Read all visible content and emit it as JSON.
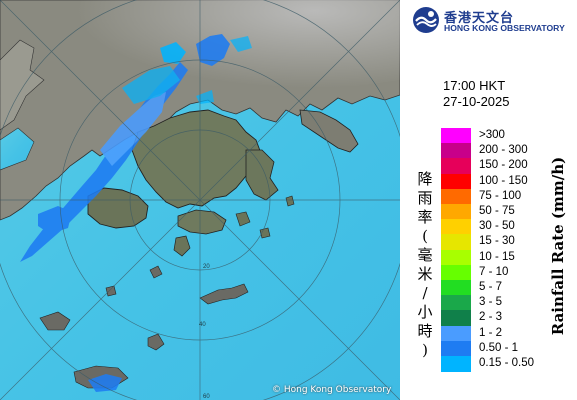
{
  "logo": {
    "name_cn": "香港天文台",
    "name_en": "HONG KONG OBSERVATORY"
  },
  "timestamp": {
    "time": "17:00 HKT",
    "date": "27-10-2025"
  },
  "copyright": "© Hong Kong Observatory",
  "legend": {
    "title_en": "Rainfall Rate (mm/h)",
    "title_cn": [
      "降",
      "雨",
      "率",
      "(",
      "毫",
      "米",
      "/",
      "小",
      "時",
      ")"
    ],
    "items": [
      {
        "label": ">300",
        "color": "#ff00ff"
      },
      {
        "label": "200 - 300",
        "color": "#c8008a"
      },
      {
        "label": "150 - 200",
        "color": "#e6005a"
      },
      {
        "label": "100 - 150",
        "color": "#ff0000"
      },
      {
        "label": "75 - 100",
        "color": "#ff6a00"
      },
      {
        "label": "50 - 75",
        "color": "#ffa800"
      },
      {
        "label": "30 - 50",
        "color": "#ffd000"
      },
      {
        "label": "15 - 30",
        "color": "#e6e600"
      },
      {
        "label": "10 - 15",
        "color": "#a8ff00"
      },
      {
        "label": "7 - 10",
        "color": "#66ff00"
      },
      {
        "label": "5 - 7",
        "color": "#22dd22"
      },
      {
        "label": "3 - 5",
        "color": "#1aa84a"
      },
      {
        "label": "2 - 3",
        "color": "#10804a"
      },
      {
        "label": "1 - 2",
        "color": "#4a9cff"
      },
      {
        "label": "0.50 - 1",
        "color": "#1e7cf2"
      },
      {
        "label": "0.15 - 0.50",
        "color": "#00b4ff"
      }
    ]
  },
  "map": {
    "range_ring_labels": [
      "20",
      "40",
      "60"
    ],
    "sea_color": "#4fc8e8",
    "land_color": "#7a7a72"
  }
}
